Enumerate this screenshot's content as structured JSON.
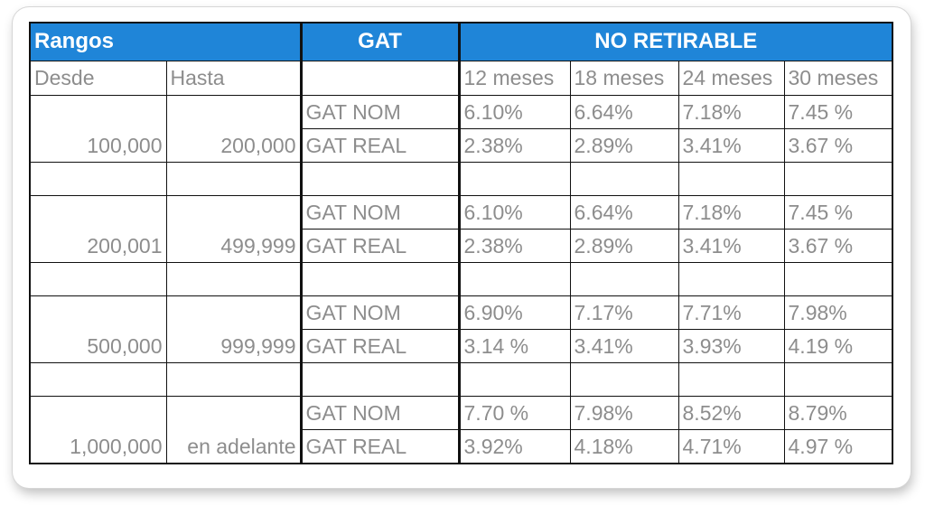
{
  "header": {
    "rangos": "Rangos",
    "gat": "GAT",
    "no_retirable": "NO RETIRABLE"
  },
  "subheader": {
    "desde": "Desde",
    "hasta": "Hasta",
    "terms": [
      "12 meses",
      "18 meses",
      "24 meses",
      "30 meses"
    ]
  },
  "row_labels": {
    "gat_nom": "GAT NOM",
    "gat_real": "GAT REAL"
  },
  "ranges": [
    {
      "desde": "100,000",
      "hasta": "200,000",
      "gat_nom": [
        "6.10%",
        "6.64%",
        "7.18%",
        "7.45 %"
      ],
      "gat_real": [
        "2.38%",
        "2.89%",
        "3.41%",
        "3.67 %"
      ]
    },
    {
      "desde": "200,001",
      "hasta": "499,999",
      "gat_nom": [
        "6.10%",
        "6.64%",
        "7.18%",
        "7.45 %"
      ],
      "gat_real": [
        "2.38%",
        "2.89%",
        "3.41%",
        "3.67 %"
      ]
    },
    {
      "desde": "500,000",
      "hasta": "999,999",
      "gat_nom": [
        "6.90%",
        "7.17%",
        "7.71%",
        "7.98%"
      ],
      "gat_real": [
        "3.14 %",
        "3.41%",
        "3.93%",
        "4.19 %"
      ]
    },
    {
      "desde": "1,000,000",
      "hasta": "en adelante",
      "gat_nom": [
        "7.70 %",
        "7.98%",
        "8.52%",
        "8.79%"
      ],
      "gat_real": [
        "3.92%",
        "4.18%",
        "4.71%",
        "4.97 %"
      ]
    }
  ],
  "colors": {
    "header_bg": "#1f85d8",
    "header_text": "#ffffff",
    "cell_text": "#8d8d8d",
    "border": "#111111"
  }
}
